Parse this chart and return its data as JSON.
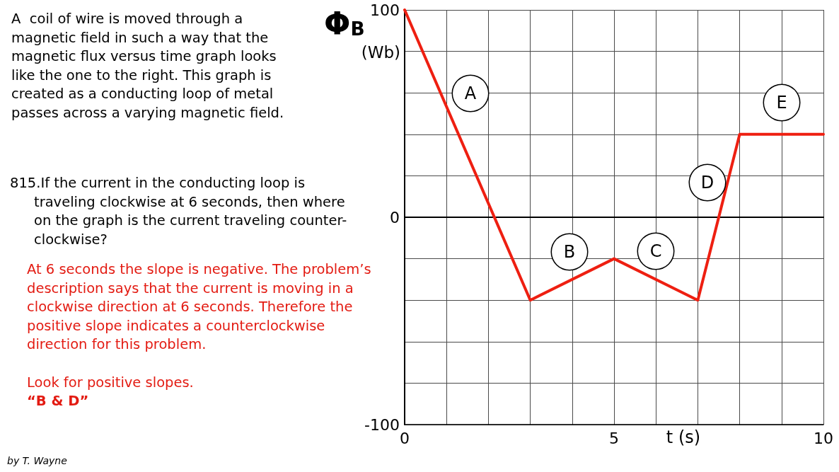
{
  "chart_data": {
    "type": "line",
    "xlabel": "t (s)",
    "ylabel": "Φ$_{B}$\n(Wb)",
    "x": [
      0,
      3,
      5,
      7,
      8,
      10
    ],
    "series": [
      {
        "color": "#ee1f11",
        "values": [
          100,
          -40,
          -20,
          -40,
          40,
          40
        ]
      }
    ],
    "xlim": [
      0,
      10
    ],
    "xticks": [
      0,
      {
        "value": 1,
        "label": null
      },
      {
        "value": 2,
        "label": null
      },
      {
        "value": 3,
        "label": null
      },
      {
        "value": 4,
        "label": null
      },
      5,
      {
        "value": 6,
        "label": null
      },
      {
        "value": 7,
        "label": null
      },
      {
        "value": 8,
        "label": null
      },
      {
        "value": 9,
        "label": null
      },
      10
    ],
    "ylim": [
      -100,
      100
    ],
    "yticks": [
      -100,
      {
        "value": -80,
        "label": null
      },
      {
        "value": -60,
        "label": null
      },
      {
        "value": -40,
        "label": null
      },
      {
        "value": -20,
        "label": null
      },
      0,
      {
        "value": 20,
        "label": null
      },
      {
        "value": 40,
        "label": null
      },
      {
        "value": 60,
        "label": null
      },
      {
        "value": 80,
        "label": null
      },
      100
    ],
    "grid": true,
    "marker": "none",
    "line_style": "solid",
    "annotations": [
      "A  coil of wire is moved through a magnetic field in such a way that the magnetic flux versus time graph looks like the one to the right. This graph is created as a conducting loop of metal passes across a varying magnetic field.",
      "815.If the current in the conducting loop is traveling clockwise at 6 seconds, then where on the graph is the current traveling counter-clockwise?",
      "At 6 seconds the slope is negative. The problem’s description says that the current is moving in a clockwise direction at 6 seconds. Therefore the positive slope indicates a counterclockwise direction for this problem.",
      "Look for positive slopes.",
      "“B & D”",
      "A",
      "B",
      "C",
      "D",
      "E",
      "by T. Wayne"
    ]
  }
}
